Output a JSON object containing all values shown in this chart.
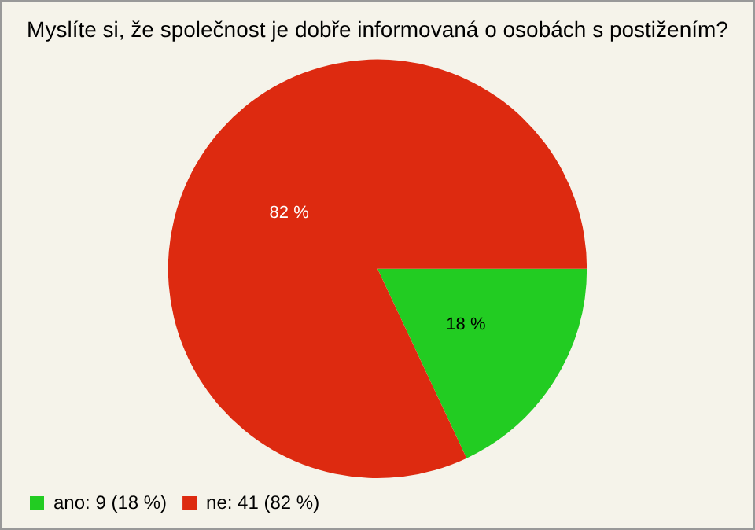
{
  "chart_data": {
    "type": "pie",
    "title": "Myslíte si, že společnost je dobře informovaná o osobách s postižením?",
    "categories": [
      "ano: 9 (18 %)",
      "ne: 41 (82 %)"
    ],
    "values": [
      18,
      82
    ],
    "colors": [
      "#22cc22",
      "#dd2a10"
    ],
    "value_labels": [
      "18 %",
      "82 %"
    ],
    "legend": "bottom left"
  }
}
